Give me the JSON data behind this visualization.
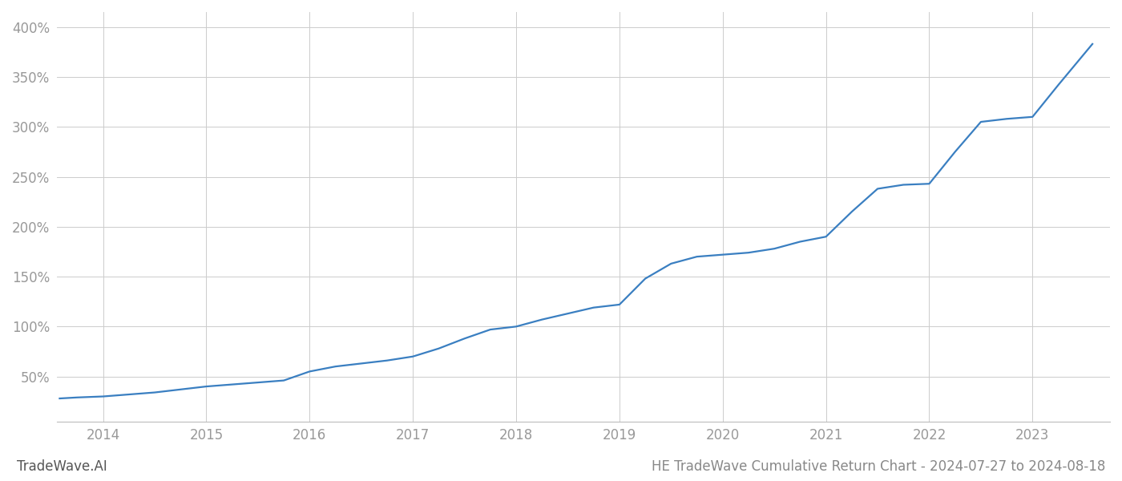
{
  "title": "HE TradeWave Cumulative Return Chart - 2024-07-27 to 2024-08-18",
  "watermark": "TradeWave.AI",
  "line_color": "#3a7fc1",
  "background_color": "#ffffff",
  "grid_color": "#cccccc",
  "x_years": [
    2014,
    2015,
    2016,
    2017,
    2018,
    2019,
    2020,
    2021,
    2022,
    2023
  ],
  "x_tick_labels": [
    "2014",
    "2015",
    "2016",
    "2017",
    "2018",
    "2019",
    "2020",
    "2021",
    "2022",
    "2023"
  ],
  "yticks": [
    50,
    100,
    150,
    200,
    250,
    300,
    350,
    400
  ],
  "ylim": [
    5,
    415
  ],
  "xlim": [
    2013.55,
    2023.75
  ],
  "data_x": [
    2013.58,
    2013.75,
    2014.0,
    2014.25,
    2014.5,
    2014.75,
    2015.0,
    2015.25,
    2015.5,
    2015.75,
    2016.0,
    2016.25,
    2016.5,
    2016.75,
    2017.0,
    2017.25,
    2017.5,
    2017.75,
    2018.0,
    2018.25,
    2018.5,
    2018.75,
    2019.0,
    2019.25,
    2019.5,
    2019.75,
    2020.0,
    2020.25,
    2020.5,
    2020.75,
    2021.0,
    2021.25,
    2021.5,
    2021.75,
    2022.0,
    2022.25,
    2022.5,
    2022.75,
    2023.0,
    2023.25,
    2023.58
  ],
  "data_y": [
    28,
    29,
    30,
    32,
    34,
    37,
    40,
    42,
    44,
    46,
    55,
    60,
    63,
    66,
    70,
    78,
    88,
    97,
    100,
    107,
    113,
    119,
    122,
    148,
    163,
    170,
    172,
    174,
    178,
    185,
    190,
    215,
    238,
    242,
    243,
    275,
    305,
    308,
    310,
    342,
    383
  ],
  "line_width": 1.6,
  "axis_label_color": "#999999",
  "axis_tick_fontsize": 12,
  "title_fontsize": 12,
  "watermark_fontsize": 12
}
